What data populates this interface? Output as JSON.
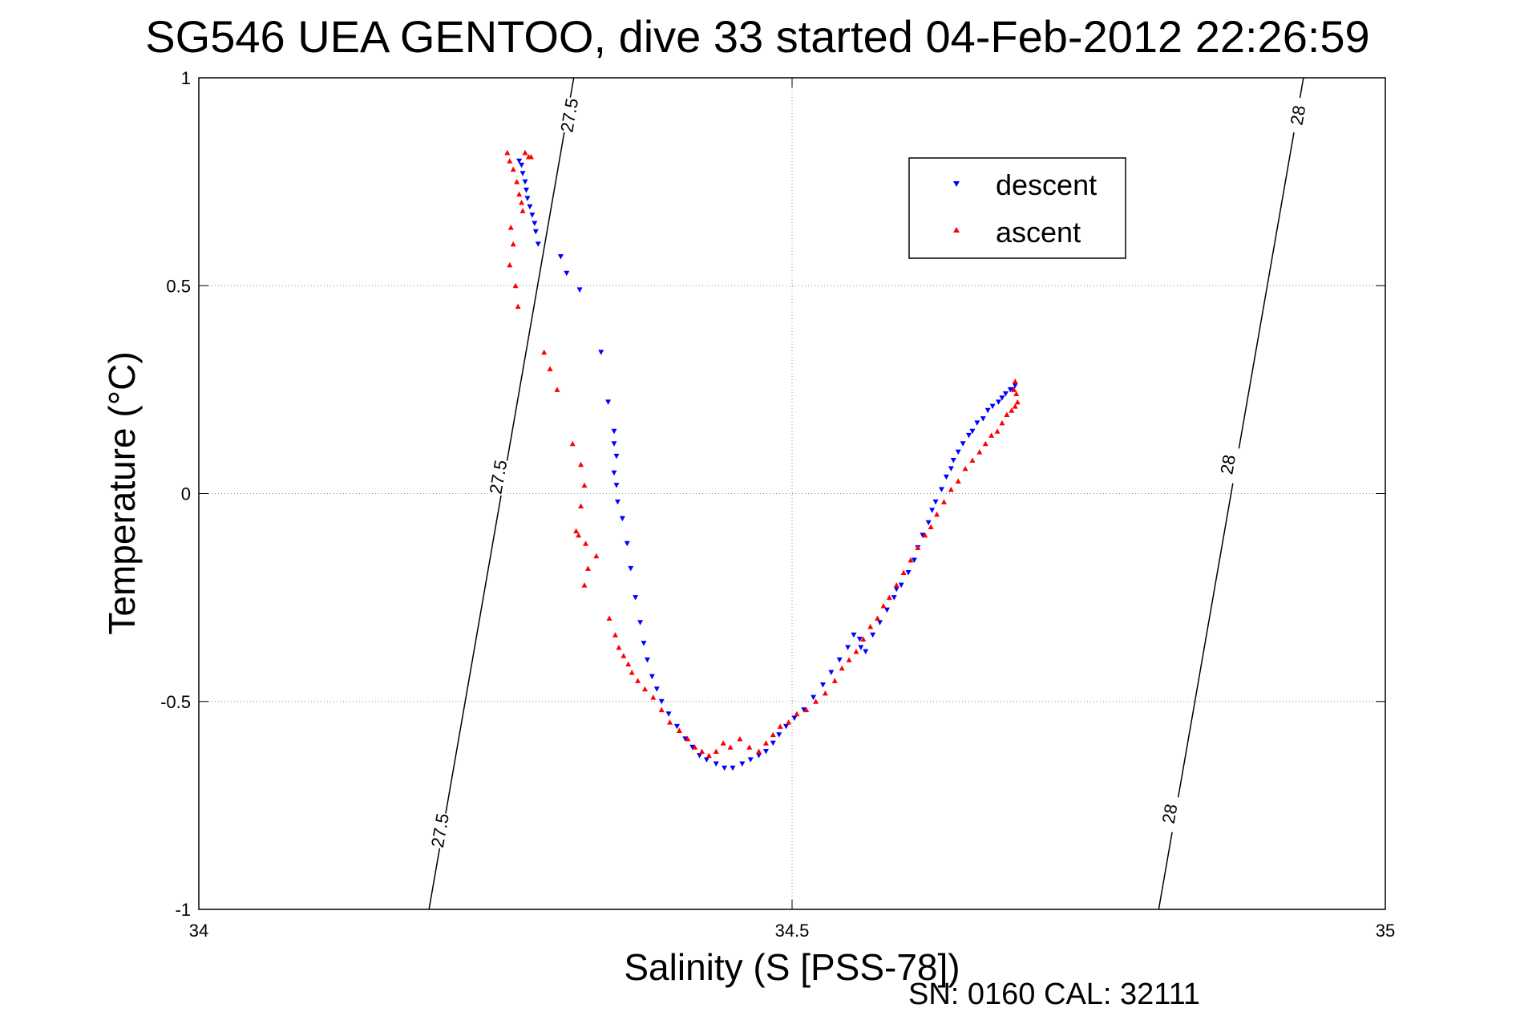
{
  "chart_data": {
    "type": "scatter",
    "title": "SG546 UEA GENTOO, dive 33 started 04-Feb-2012 22:26:59",
    "xlabel": "Salinity (S [PSS-78])",
    "ylabel": "Temperature (°C)",
    "xlim": [
      34,
      35
    ],
    "ylim": [
      -1,
      1
    ],
    "x_ticks": [
      34,
      34.5,
      35
    ],
    "x_tick_labels": [
      "34",
      "34.5",
      "35"
    ],
    "y_ticks": [
      -1,
      -0.5,
      0,
      0.5,
      1
    ],
    "y_tick_labels": [
      "-1",
      "-0.5",
      "0",
      "0.5",
      "1"
    ],
    "grid": true,
    "legend": {
      "placement": "upper-right-inside",
      "entries": [
        "descent",
        "ascent"
      ]
    },
    "footer": "SN: 0160  CAL: 32111",
    "colors": {
      "descent": "#0000ff",
      "ascent": "#ff0000",
      "contour": "#000000",
      "grid": "#888888"
    },
    "series": [
      {
        "name": "descent",
        "marker": "triangle-down",
        "x": [
          34.27,
          34.272,
          34.273,
          34.275,
          34.276,
          34.277,
          34.279,
          34.281,
          34.283,
          34.284,
          34.286,
          34.305,
          34.31,
          34.321,
          34.339,
          34.345,
          34.35,
          34.35,
          34.352,
          34.35,
          34.352,
          34.353,
          34.357,
          34.361,
          34.364,
          34.368,
          34.372,
          34.375,
          34.378,
          34.382,
          34.386,
          34.39,
          34.396,
          34.403,
          34.41,
          34.416,
          34.422,
          34.428,
          34.436,
          34.443,
          34.45,
          34.458,
          34.465,
          34.472,
          34.478,
          34.484,
          34.489,
          34.495,
          34.502,
          34.51,
          34.518,
          34.526,
          34.533,
          34.54,
          34.547,
          34.552,
          34.557,
          34.558,
          34.562,
          34.568,
          34.574,
          34.58,
          34.586,
          34.588,
          34.592,
          34.598,
          34.603,
          34.606,
          34.61,
          34.615,
          34.618,
          34.621,
          34.626,
          34.63,
          34.634,
          34.636,
          34.64,
          34.644,
          34.649,
          34.652,
          34.656,
          34.661,
          34.665,
          34.669,
          34.674,
          34.677,
          34.68,
          34.684,
          34.686,
          34.688
        ],
        "y": [
          0.8,
          0.79,
          0.77,
          0.75,
          0.73,
          0.71,
          0.69,
          0.67,
          0.65,
          0.63,
          0.6,
          0.57,
          0.53,
          0.49,
          0.34,
          0.22,
          0.15,
          0.12,
          0.09,
          0.05,
          0.02,
          -0.02,
          -0.06,
          -0.12,
          -0.18,
          -0.25,
          -0.31,
          -0.36,
          -0.4,
          -0.44,
          -0.47,
          -0.5,
          -0.53,
          -0.56,
          -0.59,
          -0.61,
          -0.63,
          -0.64,
          -0.65,
          -0.66,
          -0.66,
          -0.65,
          -0.64,
          -0.63,
          -0.62,
          -0.6,
          -0.58,
          -0.56,
          -0.54,
          -0.52,
          -0.49,
          -0.46,
          -0.43,
          -0.4,
          -0.37,
          -0.34,
          -0.35,
          -0.37,
          -0.38,
          -0.34,
          -0.31,
          -0.28,
          -0.25,
          -0.23,
          -0.22,
          -0.19,
          -0.16,
          -0.13,
          -0.1,
          -0.07,
          -0.04,
          -0.02,
          0.01,
          0.04,
          0.06,
          0.08,
          0.1,
          0.12,
          0.14,
          0.15,
          0.17,
          0.18,
          0.2,
          0.21,
          0.22,
          0.23,
          0.24,
          0.25,
          0.25,
          0.26
        ]
      },
      {
        "name": "ascent",
        "marker": "triangle-up",
        "x": [
          34.26,
          34.262,
          34.265,
          34.268,
          34.27,
          34.272,
          34.273,
          34.275,
          34.278,
          34.28,
          34.263,
          34.265,
          34.262,
          34.267,
          34.269,
          34.291,
          34.296,
          34.302,
          34.315,
          34.322,
          34.325,
          34.322,
          34.318,
          34.326,
          34.328,
          34.325,
          34.335,
          34.32,
          34.346,
          34.351,
          34.354,
          34.358,
          34.362,
          34.365,
          34.37,
          34.376,
          34.383,
          34.39,
          34.397,
          34.405,
          34.412,
          34.418,
          34.424,
          34.43,
          34.436,
          34.442,
          34.448,
          34.456,
          34.464,
          34.472,
          34.478,
          34.484,
          34.49,
          34.497,
          34.504,
          34.512,
          34.52,
          34.528,
          34.536,
          34.542,
          34.548,
          34.554,
          34.56,
          34.566,
          34.572,
          34.577,
          34.582,
          34.588,
          34.594,
          34.6,
          34.606,
          34.612,
          34.617,
          34.622,
          34.628,
          34.634,
          34.64,
          34.646,
          34.652,
          34.658,
          34.663,
          34.668,
          34.673,
          34.677,
          34.681,
          34.685,
          34.688,
          34.69,
          34.689,
          34.687,
          34.688
        ],
        "y": [
          0.82,
          0.8,
          0.78,
          0.75,
          0.72,
          0.7,
          0.68,
          0.82,
          0.81,
          0.81,
          0.64,
          0.6,
          0.55,
          0.5,
          0.45,
          0.34,
          0.3,
          0.25,
          0.12,
          0.07,
          0.02,
          -0.03,
          -0.09,
          -0.12,
          -0.18,
          -0.22,
          -0.15,
          -0.1,
          -0.3,
          -0.34,
          -0.37,
          -0.39,
          -0.41,
          -0.43,
          -0.45,
          -0.47,
          -0.49,
          -0.52,
          -0.55,
          -0.57,
          -0.59,
          -0.61,
          -0.62,
          -0.63,
          -0.62,
          -0.6,
          -0.61,
          -0.59,
          -0.61,
          -0.62,
          -0.6,
          -0.58,
          -0.56,
          -0.55,
          -0.53,
          -0.52,
          -0.5,
          -0.48,
          -0.45,
          -0.42,
          -0.4,
          -0.38,
          -0.35,
          -0.32,
          -0.3,
          -0.27,
          -0.25,
          -0.22,
          -0.19,
          -0.16,
          -0.13,
          -0.1,
          -0.08,
          -0.05,
          -0.02,
          0.01,
          0.03,
          0.06,
          0.08,
          0.1,
          0.12,
          0.14,
          0.15,
          0.17,
          0.19,
          0.2,
          0.21,
          0.22,
          0.24,
          0.25,
          0.27
        ]
      }
    ],
    "contours": [
      {
        "label": "27.5",
        "points": [
          [
            34.194,
            -1.0
          ],
          [
            34.316,
            1.0
          ]
        ],
        "label_positions": [
          [
            34.203,
            -0.81
          ],
          [
            34.252,
            0.04
          ],
          [
            34.312,
            0.91
          ]
        ]
      },
      {
        "label": "28",
        "points": [
          [
            34.809,
            -1.0
          ],
          [
            34.931,
            1.0
          ]
        ],
        "label_positions": [
          [
            34.818,
            -0.77
          ],
          [
            34.867,
            0.07
          ],
          [
            34.926,
            0.91
          ]
        ]
      }
    ]
  }
}
